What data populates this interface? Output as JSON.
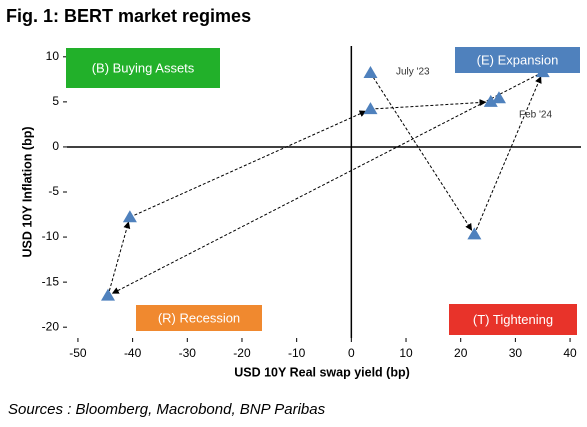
{
  "chart_data": {
    "type": "scatter",
    "title": "Fig. 1: BERT market regimes",
    "xlabel": "USD 10Y Real swap yield (bp)",
    "ylabel": "USD 10Y Inflation (bp)",
    "source": "Sources : Bloomberg, Macrobond, BNP Paribas",
    "x": [
      3.5,
      22.5,
      35,
      -44.5,
      -40.5,
      3.5,
      25.5,
      27
    ],
    "y": [
      8.2,
      -9.7,
      8.3,
      -16.5,
      -7.8,
      4.2,
      5.0,
      5.4
    ],
    "color": "#4f81bd",
    "xlim": [
      -52,
      42
    ],
    "ylim": [
      -21.2,
      11.2
    ],
    "xticks": [
      -50,
      -40,
      -30,
      -20,
      -10,
      0,
      10,
      20,
      30,
      40
    ],
    "yticks": [
      -20,
      -15,
      -10,
      -5,
      0,
      5,
      10
    ],
    "annotations": [
      "July '23",
      "Feb '24"
    ],
    "quadrants": [
      {
        "label": "(B) Buying Assets",
        "color": "#22b02a"
      },
      {
        "label": "(E) Expansion",
        "color": "#4f81bd"
      },
      {
        "label": "(R) Recession",
        "color": "#f0892f"
      },
      {
        "label": "(T) Tightening",
        "color": "#e8332a"
      }
    ]
  }
}
